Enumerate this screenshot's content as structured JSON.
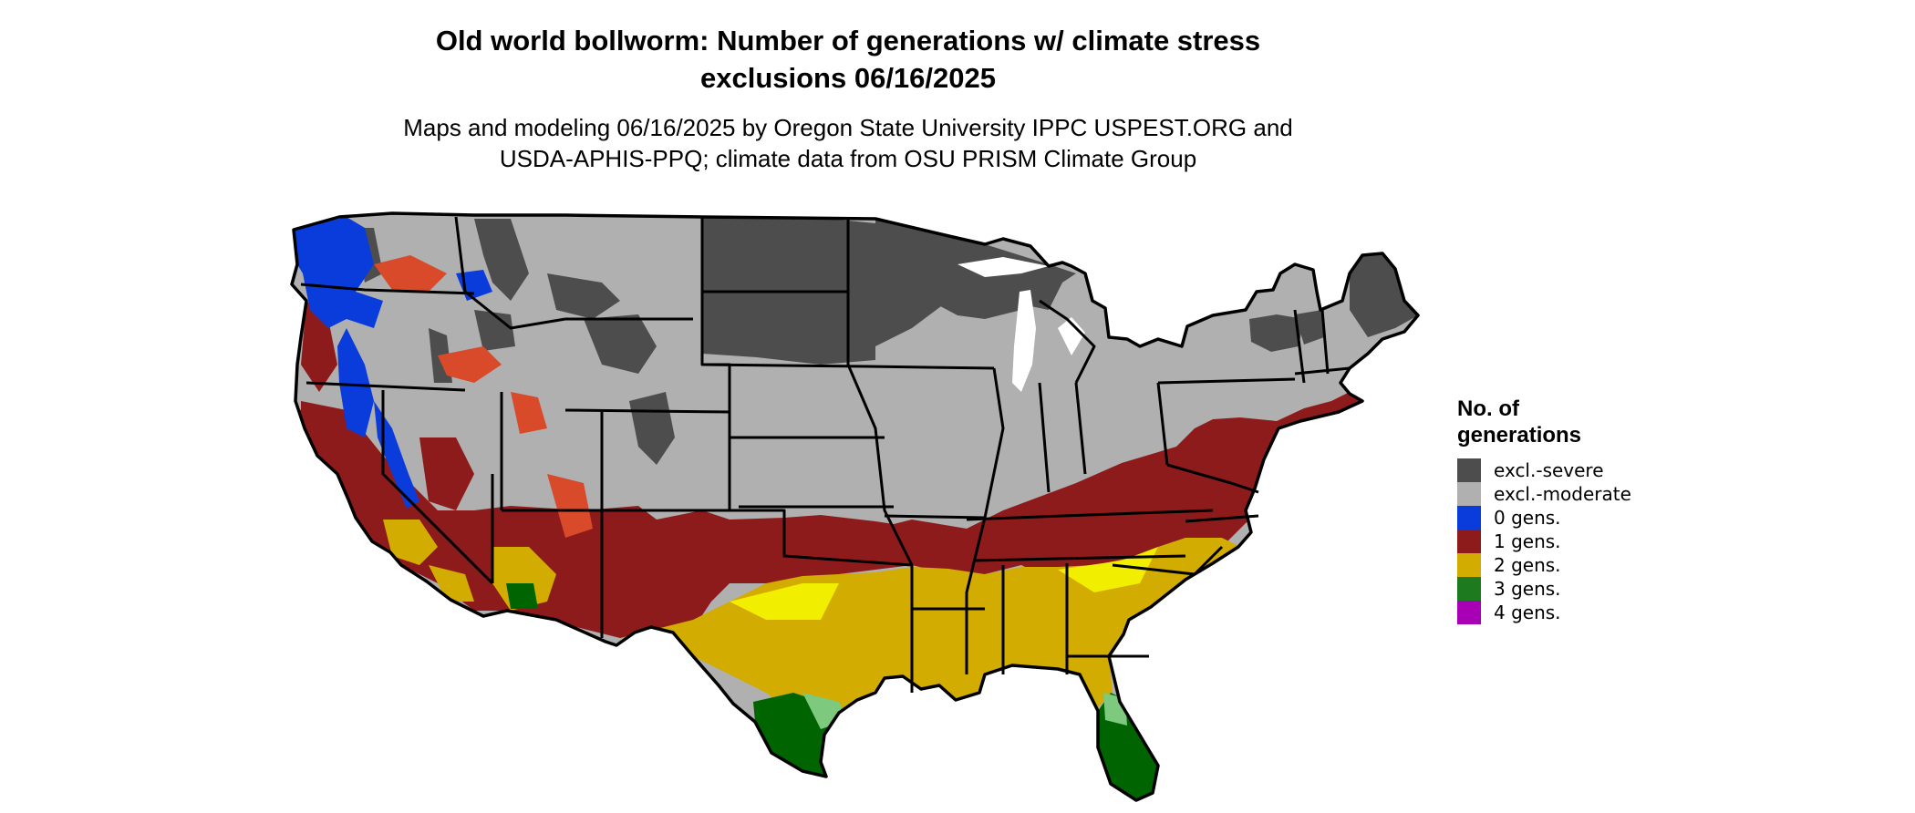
{
  "title_line1": "Old world bollworm: Number of generations w/ climate stress",
  "title_line2": "exclusions 06/16/2025",
  "subtitle_line1": "Maps and modeling 06/16/2025 by Oregon State University IPPC USPEST.ORG and",
  "subtitle_line2": "USDA-APHIS-PPQ; climate data from OSU PRISM Climate Group",
  "legend": {
    "title_line1": "No. of",
    "title_line2": "generations",
    "items": [
      {
        "label": "excl.-severe",
        "color": "#4d4d4d"
      },
      {
        "label": "excl.-moderate",
        "color": "#b0b0b0"
      },
      {
        "label": "0 gens.",
        "color": "#0a3cdc"
      },
      {
        "label": "1 gens.",
        "color": "#8e1b1b"
      },
      {
        "label": "2 gens.",
        "color": "#d2ac00"
      },
      {
        "label": "3 gens.",
        "color": "#1e7a1e"
      },
      {
        "label": "4 gens.",
        "color": "#a800b4"
      }
    ]
  },
  "map_colors": {
    "severe": "#4d4d4d",
    "moderate": "#b0b0b0",
    "gen0": "#0a3cdc",
    "gen1": "#8e1b1b",
    "gen1_light": "#d84a2a",
    "gen2": "#d2ac00",
    "gen2_light": "#f2ee00",
    "gen3": "#006400",
    "gen3_light": "#7dc97d",
    "gen4": "#a800b4",
    "lake": "#ffffff",
    "border": "#000000"
  }
}
